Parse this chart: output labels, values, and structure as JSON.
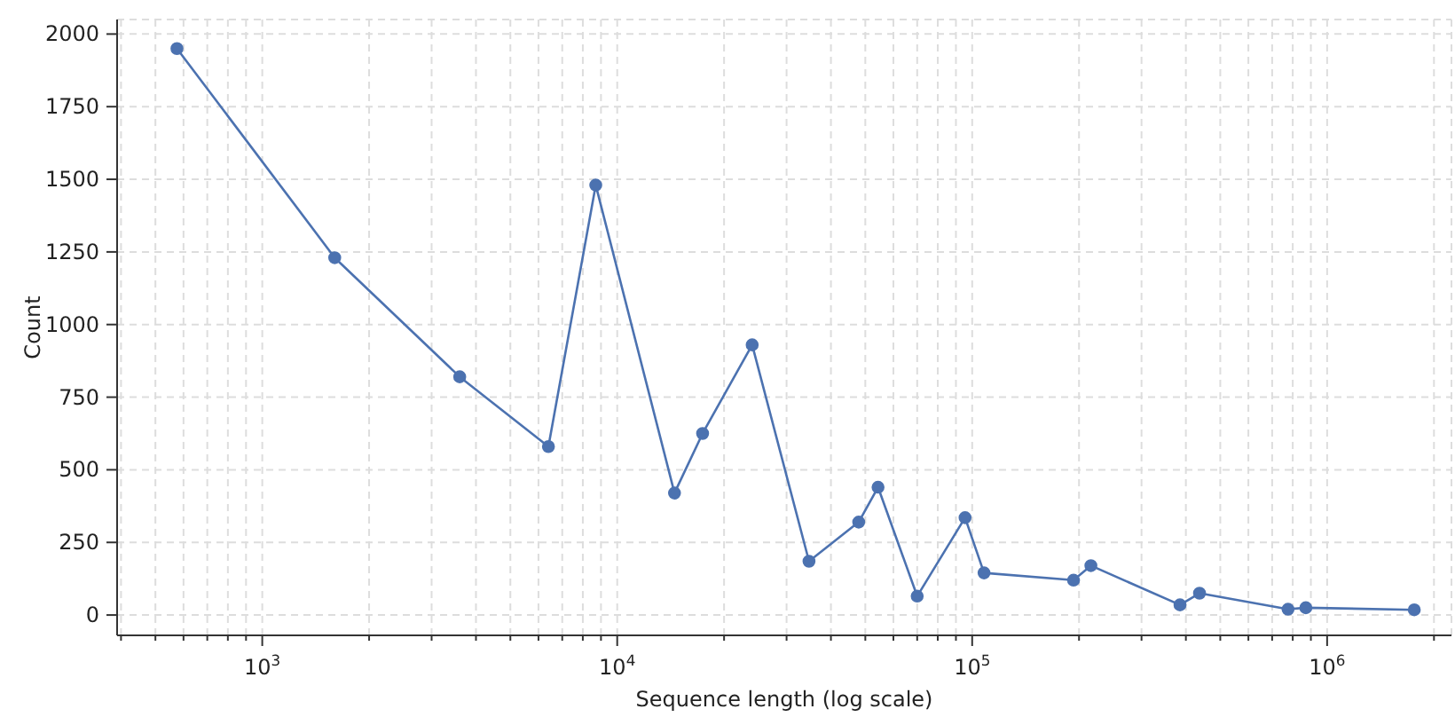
{
  "chart_data": {
    "type": "line",
    "xlabel": "Sequence length (log scale)",
    "ylabel": "Count",
    "log": "x",
    "grid": true,
    "marker": "circle",
    "line_style": "solid",
    "x": [
      575,
      1600,
      3600,
      6400,
      8700,
      14500,
      17400,
      24000,
      34700,
      47900,
      54300,
      70000,
      95500,
      108000,
      193000,
      216000,
      385000,
      437000,
      776000,
      871000,
      1760000
    ],
    "series": [
      {
        "color": "#4c72b0",
        "values": [
          1950,
          1230,
          820,
          580,
          1480,
          420,
          625,
          930,
          185,
          320,
          440,
          65,
          335,
          145,
          120,
          170,
          35,
          75,
          20,
          25,
          18
        ]
      }
    ],
    "xlim": [
      390,
      2240000
    ],
    "ylim": [
      -70,
      2050
    ],
    "xticks": [
      {
        "value": 400,
        "label": null
      },
      {
        "value": 500,
        "label": null
      },
      {
        "value": 600,
        "label": null
      },
      {
        "value": 700,
        "label": null
      },
      {
        "value": 800,
        "label": null
      },
      {
        "value": 900,
        "label": null
      },
      {
        "value": 1000,
        "label": "10$^{3}$"
      },
      {
        "value": 2000,
        "label": null
      },
      {
        "value": 3000,
        "label": null
      },
      {
        "value": 4000,
        "label": null
      },
      {
        "value": 5000,
        "label": null
      },
      {
        "value": 6000,
        "label": null
      },
      {
        "value": 7000,
        "label": null
      },
      {
        "value": 8000,
        "label": null
      },
      {
        "value": 9000,
        "label": null
      },
      {
        "value": 10000,
        "label": "10$^{4}$"
      },
      {
        "value": 20000,
        "label": null
      },
      {
        "value": 30000,
        "label": null
      },
      {
        "value": 40000,
        "label": null
      },
      {
        "value": 50000,
        "label": null
      },
      {
        "value": 60000,
        "label": null
      },
      {
        "value": 70000,
        "label": null
      },
      {
        "value": 80000,
        "label": null
      },
      {
        "value": 90000,
        "label": null
      },
      {
        "value": 100000,
        "label": "10$^{5}$"
      },
      {
        "value": 200000,
        "label": null
      },
      {
        "value": 300000,
        "label": null
      },
      {
        "value": 400000,
        "label": null
      },
      {
        "value": 500000,
        "label": null
      },
      {
        "value": 600000,
        "label": null
      },
      {
        "value": 700000,
        "label": null
      },
      {
        "value": 800000,
        "label": null
      },
      {
        "value": 900000,
        "label": null
      },
      {
        "value": 1000000,
        "label": "10$^{6}$"
      },
      {
        "value": 2000000,
        "label": null
      }
    ],
    "yticks": [
      0,
      250,
      500,
      750,
      1000,
      1250,
      1500,
      1750,
      2000
    ]
  }
}
